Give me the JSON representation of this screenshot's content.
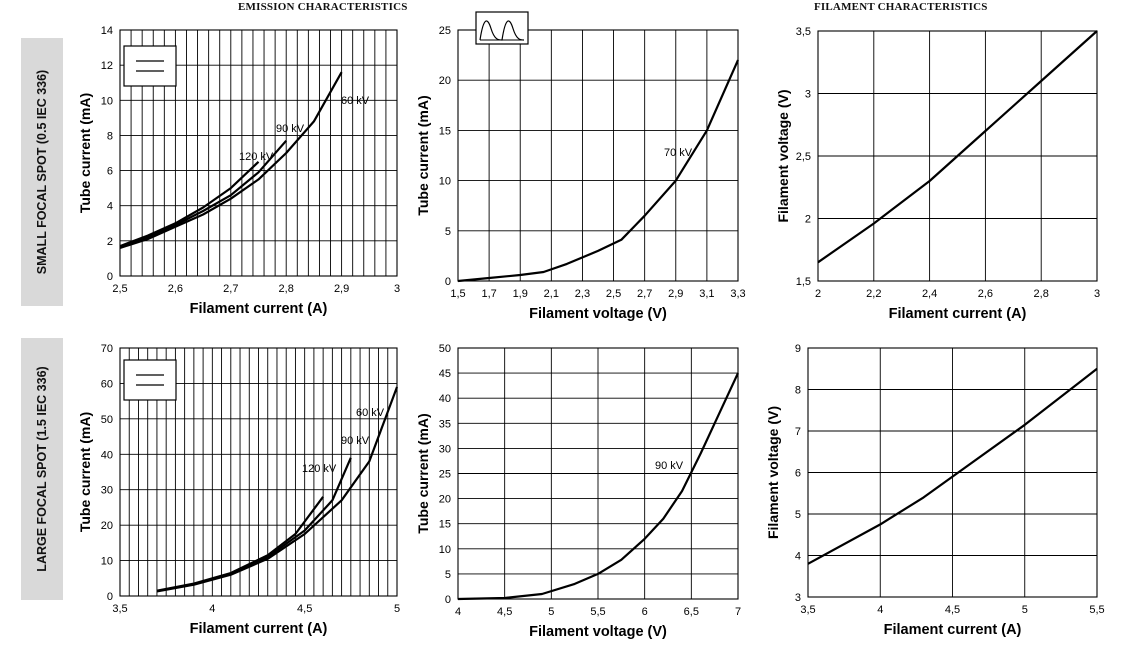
{
  "titles": {
    "emission": "EMISSION CHARACTERISTICS",
    "filament": "FILAMENT CHARACTERISTICS"
  },
  "row_labels": {
    "small": "SMALL FOCAL SPOT (0.5 IEC 336)",
    "large": "LARGE FOCAL SPOT (1.5 IEC 336)"
  },
  "colors": {
    "line": "#000000",
    "grid": "#000000",
    "row_label_bg": "#d9d9d9"
  },
  "chart_data": [
    {
      "id": "small-emission-dc",
      "type": "line",
      "xlabel": "Filament current (A)",
      "ylabel": "Tube current (mA)",
      "xlim": [
        2.5,
        3.0
      ],
      "ylim": [
        0,
        14
      ],
      "xticks": [
        "2,5",
        "2,6",
        "2,7",
        "2,8",
        "2,9",
        "3"
      ],
      "yticks": [
        "0",
        "2",
        "4",
        "6",
        "8",
        "10",
        "12",
        "14"
      ],
      "legend_icon": "double-line-icon",
      "series": [
        {
          "name": "120 kV",
          "x": [
            2.5,
            2.55,
            2.6,
            2.65,
            2.7,
            2.75
          ],
          "y": [
            1.7,
            2.3,
            3.0,
            3.9,
            5.0,
            6.5
          ]
        },
        {
          "name": "90 kV",
          "x": [
            2.5,
            2.55,
            2.6,
            2.65,
            2.7,
            2.75,
            2.8
          ],
          "y": [
            1.65,
            2.2,
            2.9,
            3.7,
            4.6,
            5.9,
            7.7
          ]
        },
        {
          "name": "60 kV",
          "x": [
            2.5,
            2.55,
            2.6,
            2.65,
            2.7,
            2.75,
            2.8,
            2.85,
            2.9
          ],
          "y": [
            1.6,
            2.1,
            2.8,
            3.5,
            4.4,
            5.5,
            7.0,
            8.8,
            11.6
          ]
        }
      ]
    },
    {
      "id": "small-emission-ac",
      "type": "line",
      "xlabel": "Filament voltage (V)",
      "ylabel": "Tube current (mA)",
      "xlim": [
        1.5,
        3.3
      ],
      "ylim": [
        0,
        25
      ],
      "xticks": [
        "1,5",
        "1,7",
        "1,9",
        "2,1",
        "2,3",
        "2,5",
        "2,7",
        "2,9",
        "3,1",
        "3,3"
      ],
      "yticks": [
        "0",
        "5",
        "10",
        "15",
        "20",
        "25"
      ],
      "legend_icon": "waveform-icon",
      "series": [
        {
          "name": "70 kV",
          "x": [
            1.5,
            1.7,
            1.9,
            2.05,
            2.2,
            2.4,
            2.55,
            2.7,
            2.9,
            3.1,
            3.3
          ],
          "y": [
            0,
            0.3,
            0.6,
            0.9,
            1.7,
            3.0,
            4.1,
            6.5,
            10.0,
            15.0,
            22.0
          ]
        }
      ]
    },
    {
      "id": "small-filament",
      "type": "line",
      "xlabel": "Filament current (A)",
      "ylabel": "Filament voltage (V)",
      "xlim": [
        2.0,
        3.0
      ],
      "ylim": [
        1.5,
        3.5
      ],
      "xticks": [
        "2",
        "2,2",
        "2,4",
        "2,6",
        "2,8",
        "3"
      ],
      "yticks": [
        "1,5",
        "2",
        "2,5",
        "3",
        "3,5"
      ],
      "series": [
        {
          "x": [
            2.0,
            2.2,
            2.4,
            2.6,
            2.8,
            3.0
          ],
          "y": [
            1.65,
            1.96,
            2.3,
            2.7,
            3.1,
            3.5
          ]
        }
      ]
    },
    {
      "id": "large-emission-dc",
      "type": "line",
      "xlabel": "Filament current (A)",
      "ylabel": "Tube current (mA)",
      "xlim": [
        3.5,
        5.0
      ],
      "ylim": [
        0,
        70
      ],
      "xticks": [
        "3,5",
        "4",
        "4,5",
        "5"
      ],
      "yticks": [
        "0",
        "10",
        "20",
        "30",
        "40",
        "50",
        "60",
        "70"
      ],
      "legend_icon": "double-line-icon",
      "series": [
        {
          "name": "120 kV",
          "x": [
            3.7,
            3.9,
            4.1,
            4.3,
            4.45,
            4.6
          ],
          "y": [
            1.5,
            3.5,
            6.5,
            11.5,
            17.5,
            28.0
          ]
        },
        {
          "name": "90 kV",
          "x": [
            3.7,
            3.9,
            4.1,
            4.3,
            4.5,
            4.65,
            4.75
          ],
          "y": [
            1.4,
            3.3,
            6.2,
            11.0,
            18.5,
            27.0,
            39.0
          ]
        },
        {
          "name": "60 kV",
          "x": [
            3.7,
            3.9,
            4.1,
            4.3,
            4.5,
            4.7,
            4.85,
            5.0
          ],
          "y": [
            1.3,
            3.2,
            6.0,
            10.5,
            17.5,
            27.0,
            38.0,
            59.0
          ]
        }
      ]
    },
    {
      "id": "large-emission-ac",
      "type": "line",
      "xlabel": "Filament voltage (V)",
      "ylabel": "Tube current (mA)",
      "xlim": [
        4.0,
        7.0
      ],
      "ylim": [
        0,
        50
      ],
      "xticks": [
        "4",
        "4,5",
        "5",
        "5,5",
        "6",
        "6,5",
        "7"
      ],
      "yticks": [
        "0",
        "5",
        "10",
        "15",
        "20",
        "25",
        "30",
        "35",
        "40",
        "45",
        "50"
      ],
      "series": [
        {
          "name": "90 kV",
          "x": [
            4.0,
            4.5,
            4.9,
            5.25,
            5.5,
            5.75,
            6.0,
            6.2,
            6.4,
            6.6,
            6.8,
            7.0
          ],
          "y": [
            0,
            0.2,
            1.0,
            3.0,
            5.0,
            7.8,
            12.0,
            16.0,
            21.5,
            29.0,
            37.0,
            45.0
          ]
        }
      ]
    },
    {
      "id": "large-filament",
      "type": "line",
      "xlabel": "Filament current (A)",
      "ylabel": "Filament voltage (V)",
      "xlim": [
        3.5,
        5.5
      ],
      "ylim": [
        3,
        9
      ],
      "xticks": [
        "3,5",
        "4",
        "4,5",
        "5",
        "5,5"
      ],
      "yticks": [
        "3",
        "4",
        "5",
        "6",
        "7",
        "8",
        "9"
      ],
      "series": [
        {
          "x": [
            3.5,
            4.0,
            4.3,
            4.5,
            5.0,
            5.5
          ],
          "y": [
            3.8,
            4.75,
            5.4,
            5.9,
            7.15,
            8.5
          ]
        }
      ]
    }
  ]
}
